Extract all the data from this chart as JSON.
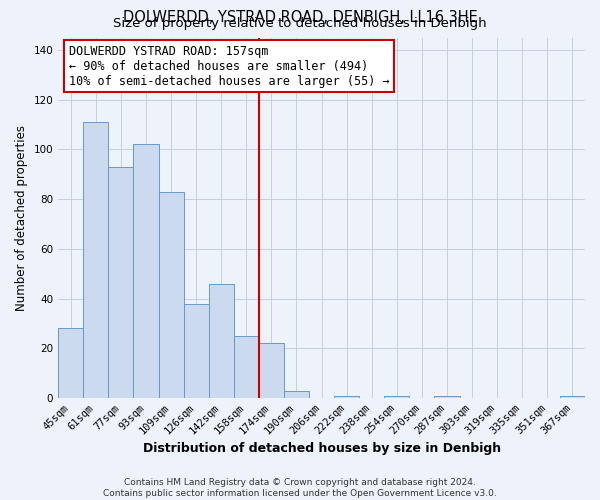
{
  "title": "DOLWERDD, YSTRAD ROAD, DENBIGH, LL16 3HE",
  "subtitle": "Size of property relative to detached houses in Denbigh",
  "xlabel": "Distribution of detached houses by size in Denbigh",
  "ylabel": "Number of detached properties",
  "bin_labels": [
    "45sqm",
    "61sqm",
    "77sqm",
    "93sqm",
    "109sqm",
    "126sqm",
    "142sqm",
    "158sqm",
    "174sqm",
    "190sqm",
    "206sqm",
    "222sqm",
    "238sqm",
    "254sqm",
    "270sqm",
    "287sqm",
    "303sqm",
    "319sqm",
    "335sqm",
    "351sqm",
    "367sqm"
  ],
  "bin_values": [
    28,
    111,
    93,
    102,
    83,
    38,
    46,
    25,
    22,
    3,
    0,
    1,
    0,
    1,
    0,
    1,
    0,
    0,
    0,
    0,
    1
  ],
  "bar_color": "#ccdaf0",
  "bar_edge_color": "#6699cc",
  "vline_color": "#cc0000",
  "vline_bin_index": 7,
  "annotation_line1": "DOLWERDD YSTRAD ROAD: 157sqm",
  "annotation_line2": "← 90% of detached houses are smaller (494)",
  "annotation_line3": "10% of semi-detached houses are larger (55) →",
  "ylim": [
    0,
    145
  ],
  "yticks": [
    0,
    20,
    40,
    60,
    80,
    100,
    120,
    140
  ],
  "footer_line1": "Contains HM Land Registry data © Crown copyright and database right 2024.",
  "footer_line2": "Contains public sector information licensed under the Open Government Licence v3.0.",
  "background_color": "#eef2fa",
  "grid_color": "#c8cedf",
  "title_fontsize": 10.5,
  "subtitle_fontsize": 9.5,
  "tick_fontsize": 7.5,
  "ylabel_fontsize": 8.5,
  "xlabel_fontsize": 9,
  "annotation_fontsize": 8.5,
  "footer_fontsize": 6.5
}
